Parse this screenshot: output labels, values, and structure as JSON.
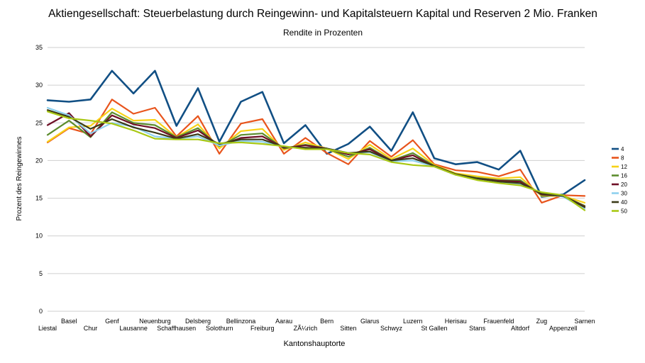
{
  "chart_data": {
    "type": "line",
    "title": "Aktiengesellschaft: Steuerbelastung durch Reingewinn- und Kapitalsteuern Kapital und Reserven 2 Mio. Franken",
    "subtitle": "Rendite in Prozenten",
    "xlabel": "Kantonshauptorte",
    "ylabel": "Prozent des Reingewinnes",
    "ylim": [
      0,
      35
    ],
    "yticks": [
      0,
      5,
      10,
      15,
      20,
      25,
      30,
      35
    ],
    "grid": "horizontal",
    "legend_position": "right",
    "categories": [
      "Liestal",
      "Basel",
      "Chur",
      "Genf",
      "Lausanne",
      "Neuenburg",
      "Schaffhausen",
      "Delsberg",
      "Solothurn",
      "Bellinzona",
      "Freiburg",
      "Aarau",
      "ZÃ¼rich",
      "Bern",
      "Sitten",
      "Glarus",
      "Schwyz",
      "Luzern",
      "St Gallen",
      "Herisau",
      "Stans",
      "Frauenfeld",
      "Altdorf",
      "Zug",
      "Appenzell",
      "Sarnen"
    ],
    "series": [
      {
        "name": "4",
        "color": "#114f84",
        "values": [
          28.0,
          27.8,
          28.1,
          31.9,
          28.9,
          31.9,
          24.6,
          29.6,
          22.5,
          27.8,
          29.1,
          22.3,
          24.7,
          20.9,
          22.2,
          24.5,
          21.3,
          26.4,
          20.3,
          19.5,
          19.8,
          18.8,
          21.3,
          15.2,
          15.5,
          17.4
        ]
      },
      {
        "name": "8",
        "color": "#e8541c",
        "values": [
          22.4,
          24.3,
          23.5,
          28.1,
          26.2,
          27.0,
          23.2,
          25.9,
          20.9,
          24.9,
          25.5,
          20.9,
          23.0,
          21.0,
          19.5,
          22.6,
          20.5,
          22.7,
          19.5,
          18.7,
          18.5,
          17.9,
          18.8,
          14.4,
          15.4,
          15.3
        ]
      },
      {
        "name": "12",
        "color": "#f7d217",
        "values": [
          22.5,
          24.4,
          24.6,
          26.9,
          25.3,
          25.4,
          23.1,
          24.8,
          21.6,
          23.9,
          24.2,
          21.4,
          22.4,
          21.6,
          20.2,
          22.1,
          20.2,
          21.6,
          19.4,
          18.3,
          17.9,
          17.6,
          17.8,
          15.3,
          15.3,
          14.4
        ]
      },
      {
        "name": "16",
        "color": "#5b8c2d",
        "values": [
          23.4,
          25.3,
          23.1,
          26.4,
          25.0,
          24.7,
          23.1,
          24.3,
          21.9,
          23.4,
          23.6,
          21.6,
          22.1,
          21.6,
          20.5,
          21.7,
          20.0,
          21.0,
          19.3,
          18.2,
          17.7,
          17.4,
          17.4,
          15.4,
          15.3,
          14.0
        ]
      },
      {
        "name": "20",
        "color": "#6e0f26",
        "values": [
          24.7,
          26.3,
          23.2,
          26.0,
          24.8,
          24.3,
          23.0,
          24.0,
          22.0,
          23.0,
          23.2,
          21.7,
          22.0,
          21.6,
          20.8,
          21.5,
          20.0,
          20.7,
          19.2,
          18.1,
          17.6,
          17.3,
          17.2,
          15.5,
          15.3,
          13.9
        ]
      },
      {
        "name": "30",
        "color": "#8ed0ee",
        "values": [
          27.0,
          26.0,
          23.6,
          25.0,
          24.5,
          23.2,
          22.9,
          23.2,
          22.0,
          22.6,
          22.5,
          21.8,
          21.6,
          21.6,
          21.0,
          21.1,
          19.9,
          20.0,
          19.2,
          18.1,
          17.5,
          17.1,
          16.9,
          15.7,
          15.2,
          13.6
        ]
      },
      {
        "name": "40",
        "color": "#3b3b18",
        "values": [
          26.7,
          25.8,
          24.2,
          25.5,
          24.4,
          23.7,
          22.9,
          23.5,
          22.2,
          22.8,
          22.8,
          21.8,
          21.7,
          21.6,
          21.0,
          21.2,
          20.0,
          20.3,
          19.3,
          18.2,
          17.6,
          17.2,
          17.0,
          15.6,
          15.3,
          13.8
        ]
      },
      {
        "name": "50",
        "color": "#a9c814",
        "values": [
          26.5,
          25.6,
          25.3,
          24.9,
          24.0,
          22.9,
          22.8,
          22.8,
          22.3,
          22.4,
          22.2,
          21.9,
          21.5,
          21.5,
          21.0,
          20.8,
          19.8,
          19.4,
          19.2,
          18.1,
          17.4,
          17.0,
          16.7,
          15.8,
          15.4,
          13.4
        ]
      }
    ]
  }
}
